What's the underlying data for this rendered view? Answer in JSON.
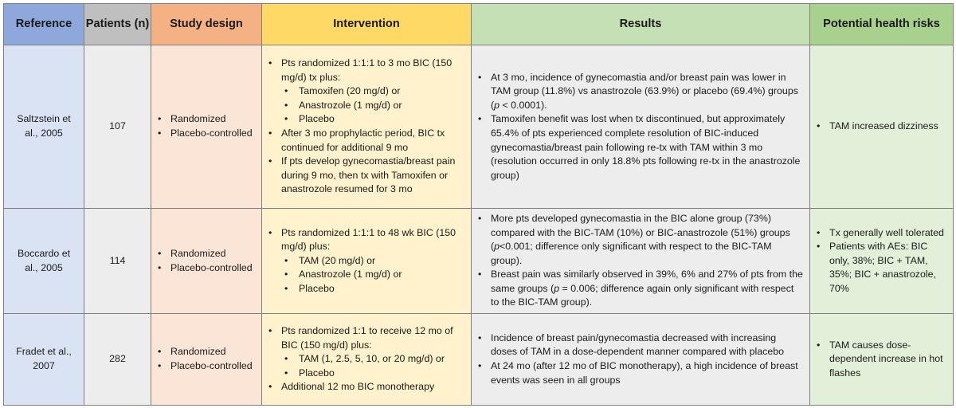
{
  "headers": {
    "reference": "Reference",
    "patients": "Patients (n)",
    "design": "Study design",
    "intervention": "Intervention",
    "results": "Results",
    "risks": "Potential health risks"
  },
  "rows": [
    {
      "reference": "Saltzstein et al., 2005",
      "patients": "107",
      "design": [
        "Randomized",
        "Placebo-controlled"
      ],
      "intervention": {
        "p1": "Pts randomized 1:1:1 to 3 mo BIC (150 mg/d) tx plus:",
        "sub": [
          "Tamoxifen (20 mg/d) or",
          "Anastrozole (1 mg/d) or",
          "Placebo"
        ],
        "p2": "After 3 mo prophylactic period, BIC tx continued for additional 9 mo",
        "p3": "If pts develop gynecomastia/breast pain during 9 mo, then tx with Tamoxifen or anastrozole resumed for 3 mo"
      },
      "results": {
        "r1_a": "At 3 mo, incidence of gynecomastia and/or breast pain was lower in TAM group (11.8%) vs anastrozole (63.9%) or placebo (69.4%) groups (",
        "r1_p": "p",
        "r1_b": " < 0.0001).",
        "r2": "Tamoxifen benefit was lost when tx discontinued, but approximately 65.4% of pts experienced complete resolution of BIC-induced gynecomastia/breast pain following re-tx with TAM within 3 mo (resolution occurred in only 18.8% pts following re-tx in the anastrozole group)"
      },
      "risks": [
        "TAM increased dizziness"
      ]
    },
    {
      "reference": "Boccardo et al., 2005",
      "patients": "114",
      "design": [
        "Randomized",
        "Placebo-controlled"
      ],
      "intervention": {
        "p1": "Pts randomized 1:1:1 to 48 wk BIC (150 mg/d) plus:",
        "sub": [
          "TAM (20 mg/d) or",
          "Anastrozole (1 mg/d) or",
          "Placebo"
        ]
      },
      "results": {
        "r1_a": "More pts developed gynecomastia in the BIC alone group (73%) compared with the BIC-TAM (10%) or BIC-anastrozole (51%) groups (",
        "r1_p": "p",
        "r1_b": "<0.001; difference only significant with respect to the BIC-TAM group).",
        "r2_a": "Breast pain was similarly observed in 39%, 6% and 27% of pts from the same groups (",
        "r2_p": "p",
        "r2_b": " = 0.006; difference again only significant with respect to the BIC-TAM group)."
      },
      "risks": [
        "Tx generally well tolerated",
        "Patients with  AEs: BIC only, 38%; BIC + TAM, 35%; BIC + anastrozole, 70%"
      ]
    },
    {
      "reference": "Fradet et al., 2007",
      "patients": "282",
      "design": [
        "Randomized",
        "Placebo-controlled"
      ],
      "intervention": {
        "p1": "Pts randomized 1:1 to receive 12 mo of BIC (150 mg/d) plus:",
        "sub": [
          "TAM (1, 2.5, 5, 10, or 20 mg/d) or",
          "Placebo"
        ],
        "p2": "Additional 12 mo BIC monotherapy"
      },
      "results": {
        "r1": "Incidence of breast pain/gynecomastia decreased with increasing doses of TAM in a dose-dependent manner compared with placebo",
        "r2": "At 24 mo (after 12 mo of BIC monotherapy), a high incidence of breast events was seen in all groups"
      },
      "risks": [
        "TAM causes dose-dependent increase in hot flashes"
      ]
    }
  ]
}
